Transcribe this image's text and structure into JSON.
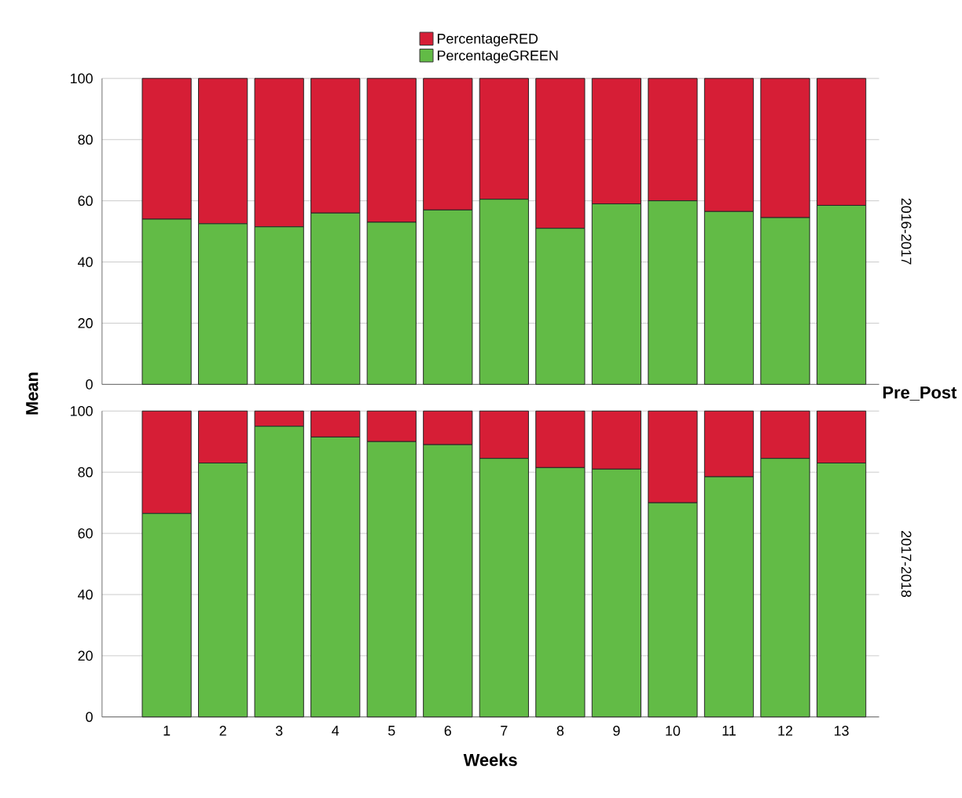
{
  "chart_data": [
    {
      "type": "bar",
      "stacked": true,
      "ylabel": "Mean",
      "y2label": "2016-2017",
      "annotations": [
        "Pre_Post"
      ],
      "legend": "top",
      "grid": "y",
      "tick_labels": "y",
      "categories": [
        "1",
        "2",
        "3",
        "4",
        "5",
        "6",
        "7",
        "8",
        "9",
        "10",
        "11",
        "12",
        "13"
      ],
      "ylim": [
        0,
        100
      ],
      "yticks": [
        0,
        20,
        40,
        60,
        80,
        100
      ],
      "series": [
        {
          "name": "PercentageGREEN",
          "color": "#62bb46",
          "values": [
            54,
            52.5,
            51.5,
            56,
            53,
            57,
            60.5,
            51,
            59,
            60,
            56.5,
            54.5,
            58.5
          ]
        },
        {
          "name": "PercentageRED",
          "color": "#d61e36",
          "values": [
            46,
            47.5,
            48.5,
            44,
            47,
            43,
            39.5,
            49,
            41,
            40,
            43.5,
            45.5,
            41.5
          ]
        }
      ]
    },
    {
      "type": "bar",
      "stacked": true,
      "xlabel": "Weeks",
      "y2label": "2017-2018",
      "grid": "y",
      "categories": [
        "1",
        "2",
        "3",
        "4",
        "5",
        "6",
        "7",
        "8",
        "9",
        "10",
        "11",
        "12",
        "13"
      ],
      "ylim": [
        0,
        100
      ],
      "yticks": [
        0,
        20,
        40,
        60,
        80,
        100
      ],
      "series": [
        {
          "color": "#62bb46",
          "values": [
            66.5,
            83,
            95,
            91.5,
            90,
            89,
            84.5,
            81.5,
            81,
            70,
            78.5,
            84.5,
            83
          ]
        },
        {
          "color": "#d61e36",
          "values": [
            33.5,
            17,
            5,
            8.5,
            10,
            11,
            15.5,
            18.5,
            19,
            30,
            21.5,
            15.5,
            17
          ]
        }
      ]
    }
  ]
}
